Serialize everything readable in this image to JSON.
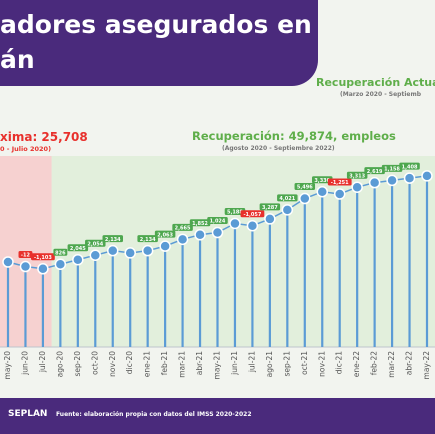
{
  "header": {
    "title_line1": "adores asegurados en",
    "title_line2": "án"
  },
  "annotations": {
    "recovery_current_title": "Recuperación Actua",
    "recovery_current_sub": "(Marzo 2020 - Septiemb",
    "loss_title": "xima: 25,708",
    "loss_sub": "0 - Julio 2020)",
    "recovery_title": "Recuperación: 49,874, empleos",
    "recovery_sub": "(Agosto 2020 - Septiembre 2022)"
  },
  "footer": {
    "logo": "SEPLAN",
    "source": "Fuente: elaboración propia con datos del IMSS 2020-2022"
  },
  "colors": {
    "band": "#4a2a7c",
    "line": "#5b9bd5",
    "point": "#5b9bd5",
    "point_ring": "#ffffff",
    "positive": "#4ea74f",
    "negative": "#e8302c",
    "loss_zone": "#f7c6c6",
    "recovery_zone": "#dcedd6"
  },
  "chart_data": {
    "type": "line",
    "x": [
      "may-20",
      "jun-20",
      "jul-20",
      "ago-20",
      "sep-20",
      "oct-20",
      "nov-20",
      "dic-20",
      "ene-21",
      "feb-21",
      "mar-21",
      "abr-21",
      "may-21",
      "jun-21",
      "jul-21",
      "ago-21",
      "sep-21",
      "oct-21",
      "nov-21",
      "dic-21",
      "ene-22",
      "feb-22",
      "mar-22",
      "abr-22",
      "may-22"
    ],
    "values": [
      340,
      338,
      337,
      339,
      341,
      343,
      345,
      344,
      345,
      347,
      350,
      352,
      353,
      357,
      356,
      359,
      363,
      368,
      371,
      370,
      373,
      375,
      376,
      377,
      378
    ],
    "changes": [
      "",
      "-12",
      "-1,103",
      "826",
      "2,045",
      "2,054",
      "2,134",
      "",
      "2,134",
      "2,063",
      "2,665",
      "1,852",
      "1,024",
      "5,188",
      "-1,057",
      "3,287",
      "4,021",
      "5,496",
      "3,330",
      "-1,251",
      "3,313",
      "2,619",
      "1,158",
      "1,408",
      ""
    ],
    "change_signs": [
      0,
      -1,
      -1,
      1,
      1,
      1,
      1,
      0,
      1,
      1,
      1,
      1,
      1,
      1,
      -1,
      1,
      1,
      1,
      1,
      -1,
      1,
      1,
      1,
      1,
      0
    ],
    "ylim": [
      310,
      385
    ],
    "zones": [
      {
        "name": "loss",
        "from": -1.5,
        "to": 2.5
      },
      {
        "name": "recovery",
        "from": 2.5,
        "to": 24.5
      }
    ],
    "grid": false,
    "legend": "none"
  }
}
